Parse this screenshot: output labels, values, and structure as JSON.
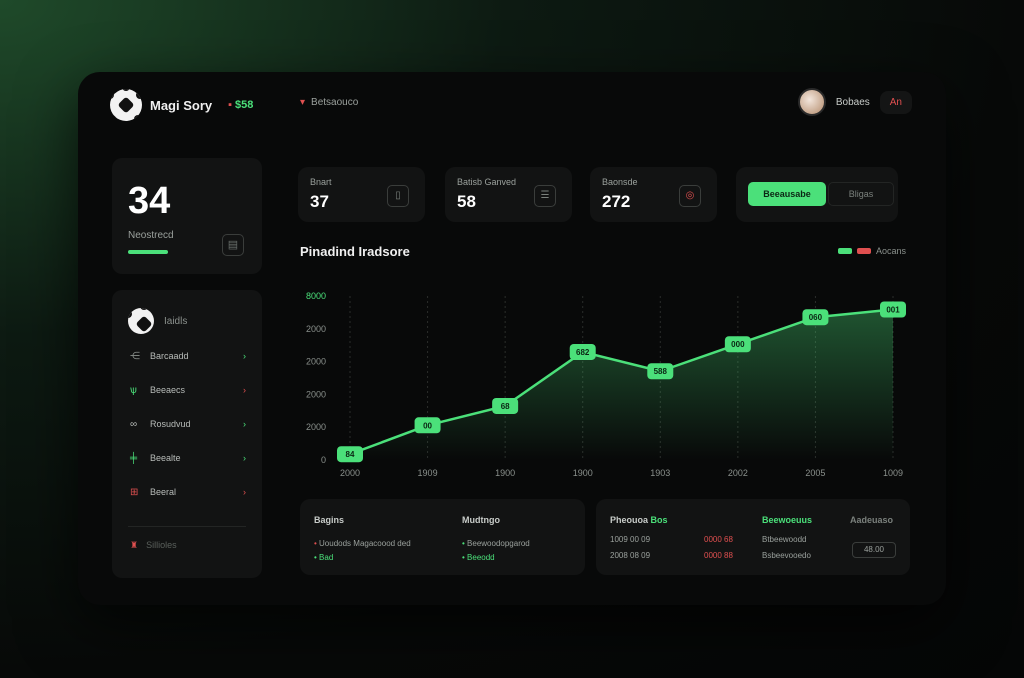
{
  "header": {
    "brand": "Magi Sory",
    "badge": "$58",
    "breadcrumb": "Betsaouco",
    "user_name": "Bobaes",
    "user_badge": "An"
  },
  "score": {
    "value": "34",
    "label": "Neostrecd",
    "icon": "calendar-icon"
  },
  "nav": {
    "header_label": "Iaidls",
    "items": [
      {
        "label": "Barcaadd",
        "icon": "chart-icon",
        "color": "#8a908c"
      },
      {
        "label": "Beeaecs",
        "icon": "plant-icon",
        "color": "#4be07a"
      },
      {
        "label": "Rosudvud",
        "icon": "glasses-icon",
        "color": "#b8bcb9"
      },
      {
        "label": "Beealte",
        "icon": "grid-icon",
        "color": "#4be07a"
      },
      {
        "label": "Beeral",
        "icon": "tag-icon",
        "color": "#e05050"
      }
    ],
    "footer": "Sillioles"
  },
  "stats": [
    {
      "label": "Bnart",
      "value": "37",
      "icon": "doc-icon"
    },
    {
      "label": "Batisb Ganved",
      "value": "58",
      "icon": "list-icon"
    },
    {
      "label": "Baonsde",
      "value": "272",
      "icon": "target-icon"
    }
  ],
  "toggle": {
    "on": "Beeausabe",
    "off": "Bligas"
  },
  "chart": {
    "title": "Pinadind Iradsore",
    "legend": "Aocans",
    "accent": "#4be07a"
  },
  "chart_data": {
    "type": "line",
    "title": "Pinadind Iradsore",
    "x": [
      "2000",
      "1909",
      "1900",
      "1900",
      "1903",
      "2002",
      "2005",
      "1009"
    ],
    "y_ticks": [
      "0",
      "2000",
      "2000",
      "2000",
      "2000",
      "8000"
    ],
    "points": [
      {
        "label": "84",
        "value": 300
      },
      {
        "label": "00",
        "value": 1800
      },
      {
        "label": "68",
        "value": 2800
      },
      {
        "label": "682",
        "value": 5600
      },
      {
        "label": "588",
        "value": 4600
      },
      {
        "label": "000",
        "value": 6000
      },
      {
        "label": "060",
        "value": 7400
      },
      {
        "label": "001",
        "value": 7800
      }
    ],
    "ylim": [
      0,
      8500
    ],
    "grid": true
  },
  "table1": {
    "headers": [
      "Bagins",
      "Mudtngo"
    ],
    "row1": [
      "Uoudods Magacoood ded",
      "Beewoodopgarod"
    ],
    "row2": [
      "Bad",
      "Beeodd"
    ]
  },
  "table2": {
    "headers": [
      "Pheouoa",
      "Bos",
      "Beewoeuus",
      "Aadeuaso"
    ],
    "row1": [
      "1009 00 09",
      "0000 68",
      "Btbeewoodd"
    ],
    "row2": [
      "2008 08 09",
      "0000 88",
      "Bsbeevooedo"
    ],
    "button": "48.00"
  }
}
